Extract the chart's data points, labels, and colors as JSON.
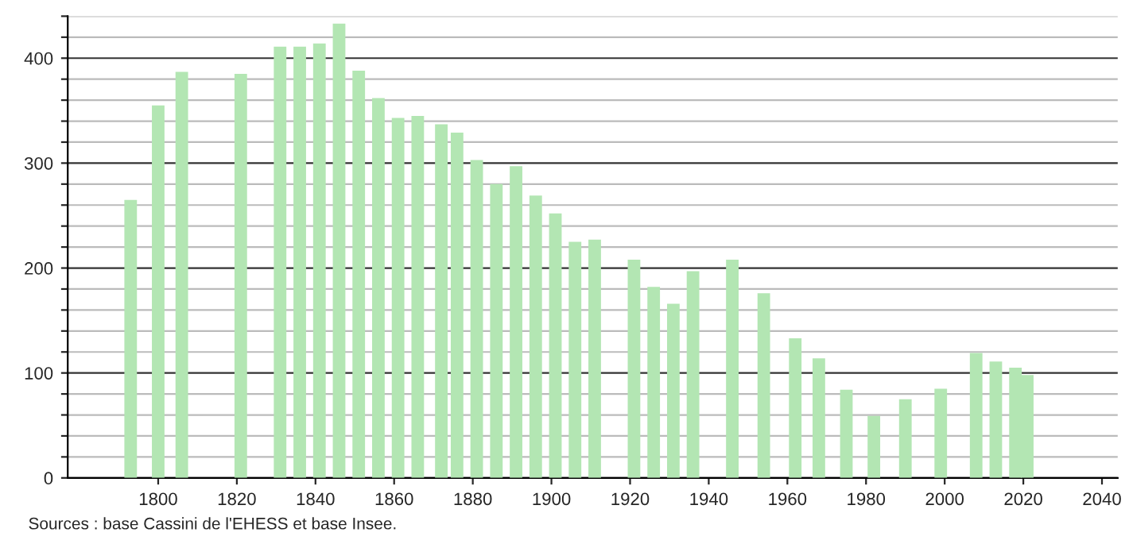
{
  "chart_data": {
    "type": "bar",
    "x": [
      1793,
      1800,
      1806,
      1821,
      1831,
      1836,
      1841,
      1846,
      1851,
      1856,
      1861,
      1866,
      1872,
      1876,
      1881,
      1886,
      1891,
      1896,
      1901,
      1906,
      1911,
      1921,
      1926,
      1931,
      1936,
      1946,
      1954,
      1962,
      1968,
      1975,
      1982,
      1990,
      1999,
      2008,
      2013,
      2018,
      2021
    ],
    "values": [
      265,
      355,
      387,
      385,
      411,
      411,
      414,
      433,
      388,
      362,
      343,
      345,
      337,
      329,
      303,
      280,
      297,
      269,
      252,
      225,
      227,
      208,
      182,
      166,
      197,
      208,
      176,
      133,
      114,
      84,
      59,
      75,
      85,
      119,
      111,
      105,
      98
    ],
    "color": "#b3e6b3",
    "xlim": [
      1777,
      2044
    ],
    "xticks": [
      1800,
      1820,
      1840,
      1860,
      1880,
      1900,
      1920,
      1940,
      1960,
      1980,
      2000,
      2020,
      2040
    ],
    "ylim": [
      0,
      440
    ],
    "yticks": [
      0,
      {
        "value": 20,
        "label": null
      },
      {
        "value": 40,
        "label": null
      },
      {
        "value": 60,
        "label": null
      },
      {
        "value": 80,
        "label": null
      },
      100,
      {
        "value": 120,
        "label": null
      },
      {
        "value": 140,
        "label": null
      },
      {
        "value": 160,
        "label": null
      },
      {
        "value": 180,
        "label": null
      },
      200,
      {
        "value": 220,
        "label": null
      },
      {
        "value": 240,
        "label": null
      },
      {
        "value": 260,
        "label": null
      },
      {
        "value": 280,
        "label": null
      },
      300,
      {
        "value": 320,
        "label": null
      },
      {
        "value": 340,
        "label": null
      },
      {
        "value": 360,
        "label": null
      },
      {
        "value": 380,
        "label": null
      },
      400,
      {
        "value": 420,
        "label": null
      },
      {
        "value": 440,
        "label": null
      }
    ],
    "grid": "y",
    "annotations": [
      "Sources : base Cassini de l'EHESS et base Insee."
    ]
  }
}
